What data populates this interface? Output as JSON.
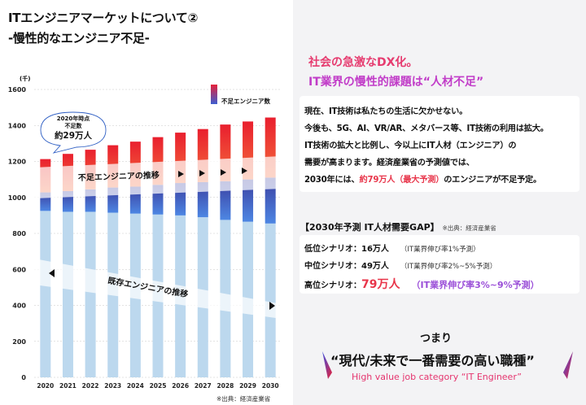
{
  "title": {
    "line1": "ITエンジニアマーケットについて②",
    "line2": "-慢性的なエンジニア不足-"
  },
  "chart_data": {
    "type": "bar",
    "ylabel": "(千)",
    "ylim": [
      0,
      1600
    ],
    "yticks": [
      "0",
      "200",
      "400",
      "600",
      "800",
      "1000",
      "1200",
      "1400",
      "1600"
    ],
    "categories": [
      "2020",
      "2021",
      "2022",
      "2023",
      "2024",
      "2025",
      "2026",
      "2027",
      "2028",
      "2029",
      "2030"
    ],
    "series": [
      {
        "values": [
          925,
          920,
          920,
          915,
          910,
          905,
          900,
          890,
          875,
          865,
          855
        ],
        "color": "#bcd8ee"
      },
      {
        "values": [
          103,
          115,
          125,
          140,
          150,
          165,
          180,
          195,
          215,
          235,
          255
        ],
        "color": "#3f63c7"
      },
      {
        "name": "不足エンジニア数",
        "values": [
          185,
          207,
          220,
          235,
          250,
          265,
          280,
          295,
          315,
          322,
          334
        ],
        "color": "#e83c34"
      }
    ],
    "legend": {
      "label": "不足エンジニア数",
      "position": "top-right"
    },
    "callout": {
      "line1": "2020年時点",
      "line2": "不足数",
      "line3": "約29万人"
    },
    "annotations": {
      "shortage_trend": "不足エンジニアの推移",
      "existing_trend": "既存エンジニアの推移"
    },
    "source": "※出典：経済産業省"
  },
  "right": {
    "headline1": "社会の急激なDX化。",
    "headline2": "IT業界の慢性的課題は“人材不足”",
    "para": {
      "l1": "現在、IT技術は私たちの生活に欠かせない。",
      "l2": "今後も、5G、AI、VR/AR、メタバース等、IT技術の利用は拡大。",
      "l3": "IT技術の拡大と比例し、今以上にIT人材（エンジニア）の",
      "l4": "需要が高まります。経済産業省の予測値では、",
      "l5a": "2030年には、",
      "l5b": "約79万人（最大予測）",
      "l5c": "のエンジニアが不足予定。"
    },
    "gap": {
      "title": "【2030年予測 IT人材需要GAP】",
      "source": "※出典：経済産業省",
      "low_label": "低位シナリオ：16万人",
      "low_note": "（IT業界伸び率1%予測）",
      "mid_label": "中位シナリオ：49万人",
      "mid_note": "（IT業界伸び率2%~5%予測）",
      "high_label": "高位シナリオ：",
      "high_value": "79万人",
      "high_note": "（IT業界伸び率3%~9%予測）"
    },
    "tsumari": "つまり",
    "bottom_head": "“現代/未来で一番需要の高い職種”",
    "bottom_sub": "High value job category “IT Engineer”"
  }
}
